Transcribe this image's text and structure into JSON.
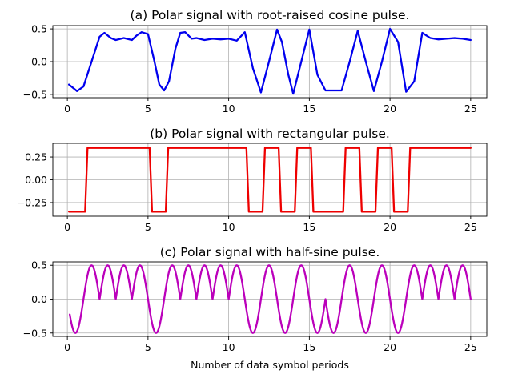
{
  "figure": {
    "xlabel": "Number of data symbol periods"
  },
  "chart_data": [
    {
      "type": "line",
      "title": "(a) Polar signal with root-raised cosine pulse.",
      "xlabel": "",
      "ylabel": "",
      "xlim": [
        -0.9,
        26.0
      ],
      "ylim": [
        -0.55,
        0.55
      ],
      "xticks": [
        0,
        5,
        10,
        15,
        20,
        25
      ],
      "xtick_labels": [
        "0",
        "5",
        "10",
        "15",
        "20",
        "25"
      ],
      "yticks": [
        -0.5,
        0.0,
        0.5
      ],
      "ytick_labels": [
        "−0.5",
        "0.0",
        "0.5"
      ],
      "grid": true,
      "color": "#0000ee",
      "series": [
        {
          "x": [
            0.1,
            0.6,
            1.0,
            1.5,
            2.0,
            2.3,
            2.7,
            3.0,
            3.5,
            4.0,
            4.3,
            4.6,
            5.0,
            5.4,
            5.7,
            6.0,
            6.3,
            6.7,
            7.0,
            7.3,
            7.7,
            8.0,
            8.5,
            9.0,
            9.5,
            10.0,
            10.5,
            11.0,
            11.5,
            12.0,
            12.5,
            13.0,
            13.3,
            13.7,
            14.0,
            14.5,
            15.0,
            15.5,
            16.0,
            16.5,
            17.0,
            17.5,
            18.0,
            18.5,
            19.0,
            19.5,
            20.0,
            20.5,
            21.0,
            21.5,
            22.0,
            22.5,
            23.0,
            23.5,
            24.0,
            24.5,
            25.0
          ],
          "y": [
            -0.35,
            -0.45,
            -0.38,
            0.0,
            0.38,
            0.44,
            0.36,
            0.33,
            0.36,
            0.33,
            0.4,
            0.45,
            0.42,
            0.0,
            -0.35,
            -0.44,
            -0.3,
            0.2,
            0.44,
            0.45,
            0.35,
            0.36,
            0.33,
            0.35,
            0.34,
            0.35,
            0.32,
            0.45,
            -0.1,
            -0.47,
            0.0,
            0.49,
            0.3,
            -0.2,
            -0.49,
            0.0,
            0.49,
            -0.2,
            -0.44,
            -0.44,
            -0.44,
            0.0,
            0.47,
            0.0,
            -0.45,
            0.0,
            0.5,
            0.3,
            -0.46,
            -0.3,
            0.44,
            0.36,
            0.34,
            0.35,
            0.36,
            0.35,
            0.33
          ]
        }
      ]
    },
    {
      "type": "line",
      "title": "(b) Polar signal with rectangular pulse.",
      "xlabel": "",
      "ylabel": "",
      "xlim": [
        -0.9,
        26.0
      ],
      "ylim": [
        -0.4,
        0.4
      ],
      "xticks": [
        0,
        5,
        10,
        15,
        20,
        25
      ],
      "xtick_labels": [
        "0",
        "5",
        "10",
        "15",
        "20",
        "25"
      ],
      "yticks": [
        -0.25,
        0.0,
        0.25
      ],
      "ytick_labels": [
        "−0.25",
        "0.00",
        "0.25"
      ],
      "grid": true,
      "color": "#ee0000",
      "series": [
        {
          "x": [
            0.1,
            1.1,
            1.25,
            5.1,
            5.25,
            6.1,
            6.25,
            11.1,
            11.25,
            12.1,
            12.25,
            13.1,
            13.25,
            14.1,
            14.25,
            15.1,
            15.25,
            17.1,
            17.25,
            18.1,
            18.25,
            19.1,
            19.25,
            20.1,
            20.25,
            21.1,
            21.25,
            25.0
          ],
          "y": [
            -0.35,
            -0.35,
            0.35,
            0.35,
            -0.35,
            -0.35,
            0.35,
            0.35,
            -0.35,
            -0.35,
            0.35,
            0.35,
            -0.35,
            -0.35,
            0.35,
            0.35,
            -0.35,
            -0.35,
            0.35,
            0.35,
            -0.35,
            -0.35,
            0.35,
            0.35,
            -0.35,
            -0.35,
            0.35,
            0.35
          ]
        }
      ]
    },
    {
      "type": "line",
      "title": "(c) Polar signal with half-sine pulse.",
      "xlabel": "Number of data symbol periods",
      "ylabel": "",
      "xlim": [
        -0.9,
        26.0
      ],
      "ylim": [
        -0.55,
        0.55
      ],
      "xticks": [
        0,
        5,
        10,
        15,
        20,
        25
      ],
      "xtick_labels": [
        "0",
        "5",
        "10",
        "15",
        "20",
        "25"
      ],
      "yticks": [
        -0.5,
        0.0,
        0.5
      ],
      "ytick_labels": [
        "−0.5",
        "0.0",
        "0.5"
      ],
      "grid": true,
      "color": "#bb00bb",
      "symbol_signs": [
        -1,
        1,
        1,
        1,
        1,
        -1,
        1,
        1,
        1,
        1,
        1,
        -1,
        1,
        -1,
        1,
        -1,
        -1,
        1,
        -1,
        1,
        -1,
        1,
        1,
        1,
        1
      ]
    }
  ]
}
